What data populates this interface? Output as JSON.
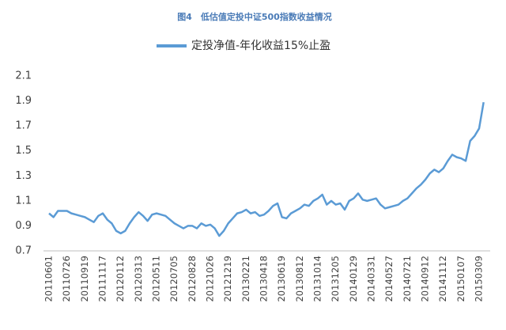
{
  "chart_data": {
    "type": "line",
    "title": "图4　低估值定投中证500指数收益情况",
    "categories": [
      "20110601",
      null,
      null,
      null,
      "20110726",
      null,
      null,
      null,
      "20110919",
      null,
      null,
      null,
      "20111117",
      null,
      null,
      null,
      "20120112",
      null,
      null,
      null,
      "20120313",
      null,
      null,
      null,
      "20120511",
      null,
      null,
      null,
      "20120705",
      null,
      null,
      null,
      "20120828",
      null,
      null,
      null,
      "20121026",
      null,
      null,
      null,
      "20121219",
      null,
      null,
      null,
      "20130221",
      null,
      null,
      null,
      "20130418",
      null,
      null,
      null,
      "20130619",
      null,
      null,
      null,
      "20130812",
      null,
      null,
      null,
      "20131014",
      null,
      null,
      null,
      "20131205",
      null,
      null,
      null,
      "20140129",
      null,
      null,
      null,
      "20140331",
      null,
      null,
      null,
      "20140527",
      null,
      null,
      null,
      "20140721",
      null,
      null,
      null,
      "20140912",
      null,
      null,
      null,
      "20141112",
      null,
      null,
      null,
      "20150107",
      null,
      null,
      null,
      "20150309",
      null
    ],
    "series": [
      {
        "name": "定投净值-年化收益15%止盈",
        "color": "#5b9bd5",
        "values": [
          1.0,
          0.97,
          1.02,
          1.02,
          1.02,
          1.0,
          0.99,
          0.98,
          0.97,
          0.95,
          0.93,
          0.98,
          1.0,
          0.95,
          0.92,
          0.86,
          0.84,
          0.86,
          0.92,
          0.97,
          1.01,
          0.98,
          0.94,
          0.99,
          1.0,
          0.99,
          0.98,
          0.95,
          0.92,
          0.9,
          0.88,
          0.9,
          0.9,
          0.88,
          0.92,
          0.9,
          0.91,
          0.88,
          0.82,
          0.86,
          0.92,
          0.96,
          1.0,
          1.01,
          1.03,
          1.0,
          1.01,
          0.98,
          0.99,
          1.02,
          1.06,
          1.08,
          0.97,
          0.96,
          1.0,
          1.02,
          1.04,
          1.07,
          1.06,
          1.1,
          1.12,
          1.15,
          1.07,
          1.1,
          1.07,
          1.08,
          1.03,
          1.1,
          1.12,
          1.16,
          1.11,
          1.1,
          1.11,
          1.12,
          1.07,
          1.04,
          1.05,
          1.06,
          1.07,
          1.1,
          1.12,
          1.16,
          1.2,
          1.23,
          1.27,
          1.32,
          1.35,
          1.33,
          1.36,
          1.42,
          1.47,
          1.45,
          1.44,
          1.42,
          1.58,
          1.62,
          1.68,
          1.89
        ]
      }
    ],
    "ylim": [
      0.7,
      2.1
    ],
    "yticks": [
      0.7,
      0.9,
      1.1,
      1.3,
      1.5,
      1.7,
      1.9,
      2.1
    ],
    "grid": false,
    "legend": "top"
  }
}
